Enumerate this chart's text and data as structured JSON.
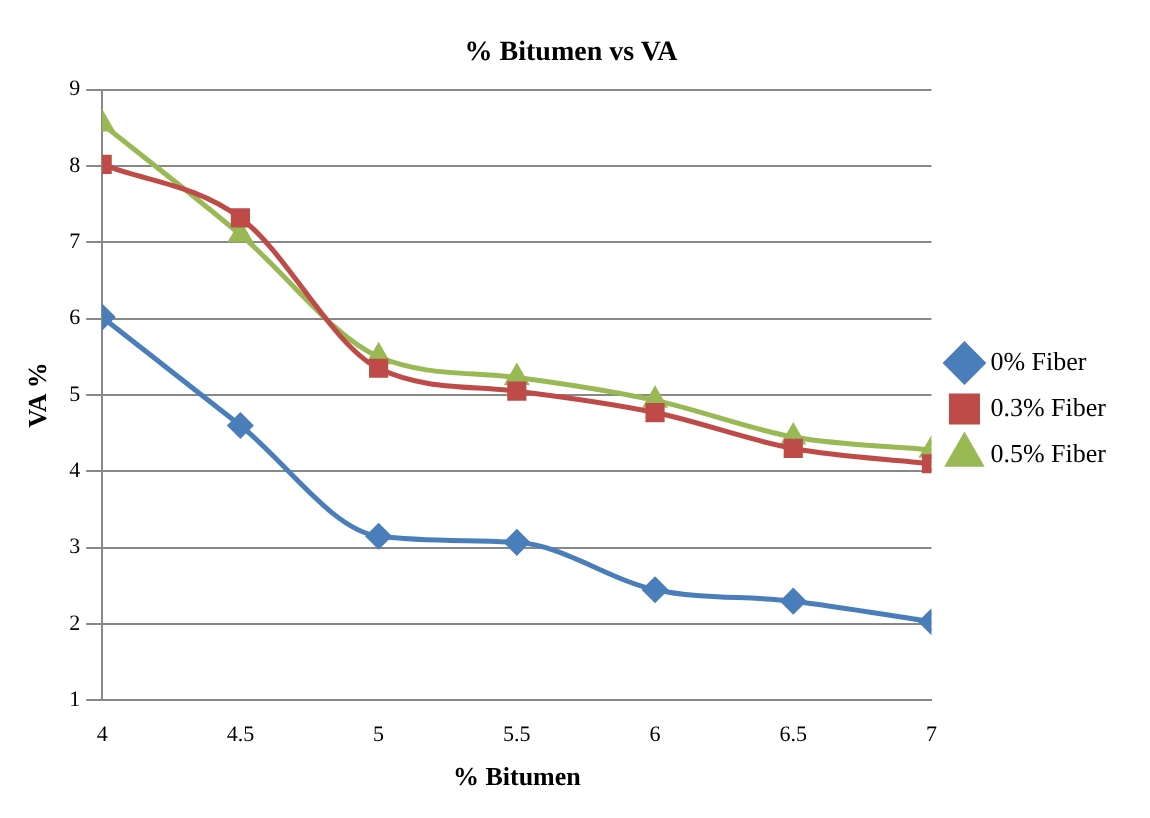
{
  "chart_data": {
    "type": "line",
    "title": "% Bitumen vs VA",
    "xlabel": "% Bitumen",
    "ylabel": "VA %",
    "x": [
      4,
      4.5,
      5,
      5.5,
      6,
      6.5,
      7
    ],
    "series": [
      {
        "name": "0% Fiber",
        "color": "#4a7ebb",
        "marker": "diamond",
        "values": [
          6.02,
          4.6,
          3.15,
          3.07,
          2.45,
          2.3,
          2.03
        ]
      },
      {
        "name": "0.3% Fiber",
        "color": "#be4b48",
        "marker": "square",
        "values": [
          8.02,
          7.32,
          5.35,
          5.05,
          4.77,
          4.3,
          4.1
        ]
      },
      {
        "name": "0.5% Fiber",
        "color": "#98b954",
        "marker": "triangle",
        "values": [
          8.55,
          7.1,
          5.5,
          5.23,
          4.93,
          4.45,
          4.28
        ]
      }
    ],
    "xlim": [
      4,
      7
    ],
    "xticks": [
      4,
      4.5,
      5,
      5.5,
      6,
      6.5,
      7
    ],
    "ylim": [
      1,
      9
    ],
    "yticks": [
      1,
      2,
      3,
      4,
      5,
      6,
      7,
      8,
      9
    ],
    "grid": "y",
    "legend": "right",
    "line_style": "solid"
  }
}
